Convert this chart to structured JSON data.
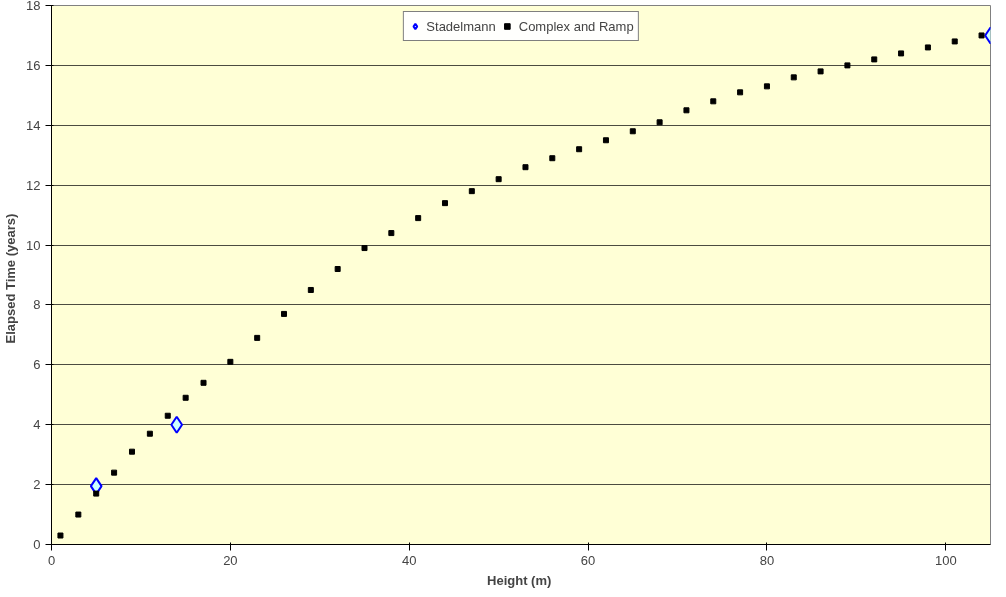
{
  "chart_data": {
    "type": "scatter",
    "xlabel": "Height  (m)",
    "ylabel": "Elapsed  Time  (years)",
    "xlim": [
      0,
      105
    ],
    "ylim": [
      0,
      18
    ],
    "xticks": [
      0,
      20,
      40,
      60,
      80,
      100
    ],
    "yticks": [
      0,
      2,
      4,
      6,
      8,
      10,
      12,
      14,
      16,
      18
    ],
    "grid": "y",
    "legend": "top",
    "series": [
      {
        "name": "Stadelmann",
        "color": "#0000ff",
        "marker": "diamond",
        "x": [
          5,
          14,
          105
        ],
        "values": [
          1.95,
          4,
          17
        ]
      },
      {
        "name": "Complex and Ramp",
        "color": "#000000",
        "marker": "square",
        "x": [
          1,
          3,
          5,
          7,
          9,
          11,
          13,
          15,
          17,
          20,
          23,
          26,
          29,
          32,
          35,
          38,
          41,
          44,
          47,
          50,
          53,
          56,
          59,
          62,
          65,
          68,
          71,
          74,
          77,
          80,
          83,
          86,
          89,
          92,
          95,
          98,
          101,
          104
        ],
        "values": [
          0.3,
          1,
          1.7,
          2.4,
          3.1,
          3.7,
          4.3,
          4.9,
          5.4,
          6.1,
          6.9,
          7.7,
          8.5,
          9.2,
          9.9,
          10.4,
          10.9,
          11.4,
          11.8,
          12.2,
          12.6,
          12.9,
          13.2,
          13.5,
          13.8,
          14.1,
          14.5,
          14.8,
          15.1,
          15.3,
          15.6,
          15.8,
          16.0,
          16.2,
          16.4,
          16.6,
          16.8,
          17.0
        ]
      }
    ]
  }
}
